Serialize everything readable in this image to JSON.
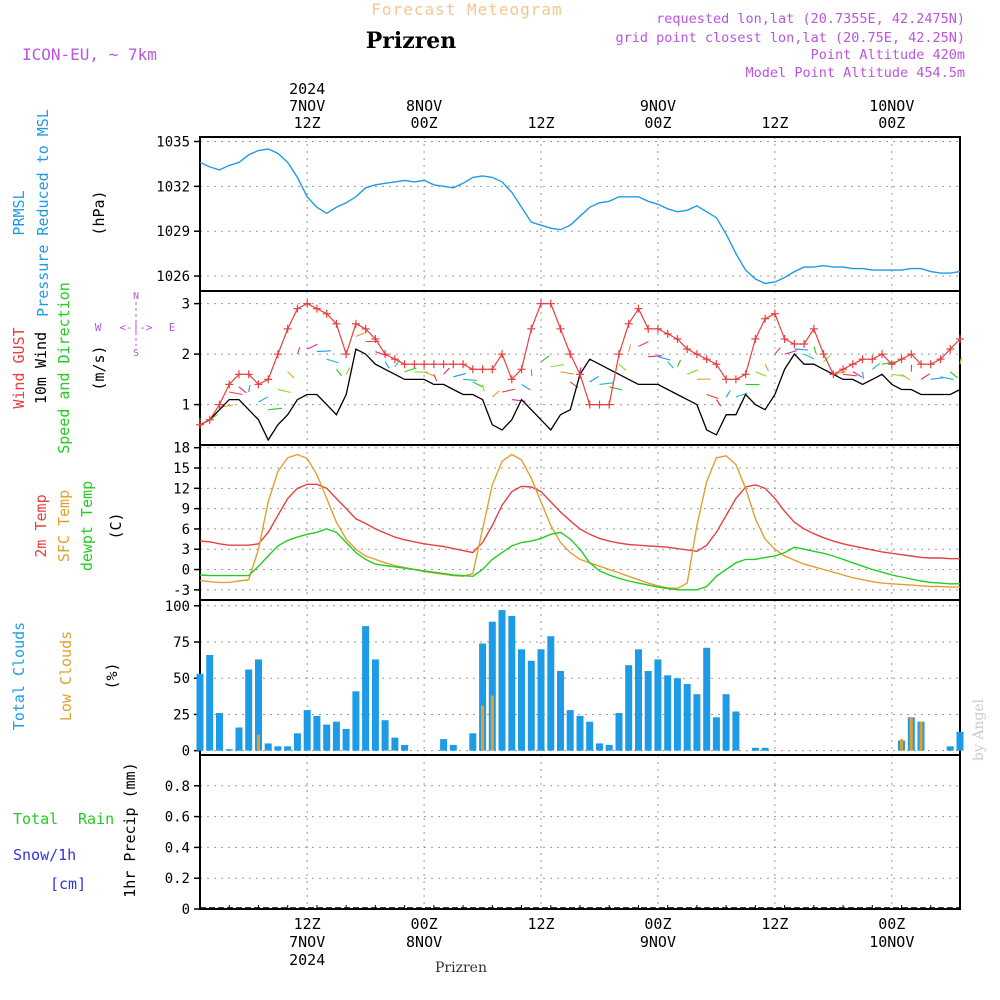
{
  "header": {
    "product": "Forecast Meteogram",
    "location": "Prizren",
    "model": "ICON-EU, ~ 7km",
    "requested": "requested lon,lat (20.7355E, 42.2475N)",
    "grid_point": "grid point closest lon,lat (20.75E, 42.25N)",
    "point_altitude": "Point Altitude 420m",
    "model_altitude": "Model Point Altitude 454.5m",
    "bottom_location": "Prizren",
    "watermark": "by Angel"
  },
  "time_axis": {
    "top_labels": [
      {
        "x": 12,
        "lines": [
          "2024",
          "7NOV",
          "12Z"
        ]
      },
      {
        "x": 24,
        "lines": [
          "8NOV",
          "00Z"
        ]
      },
      {
        "x": 36,
        "lines": [
          "12Z"
        ]
      },
      {
        "x": 48,
        "lines": [
          "9NOV",
          "00Z"
        ]
      },
      {
        "x": 60,
        "lines": [
          "12Z"
        ]
      },
      {
        "x": 72,
        "lines": [
          "10NOV",
          "00Z"
        ]
      }
    ],
    "bottom_labels": [
      {
        "x": 12,
        "lines": [
          "12Z",
          "7NOV",
          "2024"
        ]
      },
      {
        "x": 24,
        "lines": [
          "00Z",
          "8NOV"
        ]
      },
      {
        "x": 36,
        "lines": [
          "12Z"
        ]
      },
      {
        "x": 48,
        "lines": [
          "00Z",
          "9NOV"
        ]
      },
      {
        "x": 60,
        "lines": [
          "12Z"
        ]
      },
      {
        "x": 72,
        "lines": [
          "00Z",
          "10NOV"
        ]
      }
    ]
  },
  "panel_labels": {
    "pressure": [
      "PRMSL",
      "Pressure Reduced to MSL",
      "(hPa)"
    ],
    "wind": [
      "Wind GUST",
      "10m Wind",
      "Speed and Direction",
      "(m/s)"
    ],
    "compass": {
      "n": "N",
      "s": "S",
      "e": "E",
      "w": "W",
      "arrow": "<-|->"
    },
    "temp": [
      "2m Temp",
      "SFC Temp",
      "dewpt Temp",
      "(C)"
    ],
    "clouds": [
      "Total Clouds",
      "Low Clouds",
      "(%)"
    ],
    "precip": [
      "Total",
      "Rain",
      "Snow/1h",
      "[cm]",
      "1hr Precip (mm)"
    ]
  },
  "colors": {
    "pressure": "#1e9be6",
    "gust": "#e84040",
    "wind": "#000000",
    "sfc_temp": "#e0a030",
    "temp2m": "#e84040",
    "dewpt": "#22cc22",
    "total_clouds": "#1e9be6",
    "low_clouds": "#e0a030",
    "rain": "#22cc22",
    "snow": "#3333dd",
    "header": "#bb55dd",
    "product": "#f0c890"
  },
  "chart_data": [
    {
      "type": "line",
      "panel": "pressure",
      "ylabel": "(hPa)",
      "ylim": [
        1025,
        1035.3
      ],
      "yticks": [
        1026,
        1029,
        1032,
        1035
      ],
      "xlim": [
        1,
        79
      ],
      "x": [
        1,
        2,
        3,
        4,
        5,
        6,
        7,
        8,
        9,
        10,
        11,
        12,
        13,
        14,
        15,
        16,
        17,
        18,
        19,
        20,
        21,
        22,
        23,
        24,
        25,
        26,
        27,
        28,
        29,
        30,
        31,
        32,
        33,
        34,
        35,
        36,
        37,
        38,
        39,
        40,
        41,
        42,
        43,
        44,
        45,
        46,
        47,
        48,
        49,
        50,
        51,
        52,
        53,
        54,
        55,
        56,
        57,
        58,
        59,
        60,
        61,
        62,
        63,
        64,
        65,
        66,
        67,
        68,
        69,
        70,
        71,
        72,
        73,
        74,
        75,
        76,
        77,
        78,
        79
      ],
      "series": [
        {
          "name": "PRMSL",
          "values": [
            1033.6,
            1033.3,
            1033.1,
            1033.4,
            1033.6,
            1034.1,
            1034.4,
            1034.5,
            1034.2,
            1033.6,
            1032.6,
            1031.3,
            1030.6,
            1030.2,
            1030.6,
            1030.9,
            1031.3,
            1031.9,
            1032.1,
            1032.2,
            1032.3,
            1032.4,
            1032.3,
            1032.4,
            1032.1,
            1032.0,
            1031.9,
            1032.2,
            1032.6,
            1032.7,
            1032.6,
            1032.3,
            1031.6,
            1030.6,
            1029.6,
            1029.4,
            1029.2,
            1029.1,
            1029.4,
            1030.0,
            1030.6,
            1030.9,
            1031.0,
            1031.3,
            1031.3,
            1031.3,
            1031.0,
            1030.8,
            1030.5,
            1030.3,
            1030.4,
            1030.7,
            1030.3,
            1029.9,
            1028.8,
            1027.5,
            1026.4,
            1025.8,
            1025.5,
            1025.6,
            1025.9,
            1026.3,
            1026.6,
            1026.6,
            1026.7,
            1026.6,
            1026.6,
            1026.5,
            1026.5,
            1026.4,
            1026.4,
            1026.4,
            1026.4,
            1026.5,
            1026.5,
            1026.3,
            1026.2,
            1026.2,
            1026.3
          ]
        }
      ]
    },
    {
      "type": "line",
      "panel": "wind",
      "ylabel": "(m/s)",
      "ylim": [
        0.2,
        3.25
      ],
      "yticks": [
        1,
        2,
        3
      ],
      "xlim": [
        1,
        79
      ],
      "x": [
        1,
        2,
        3,
        4,
        5,
        6,
        7,
        8,
        9,
        10,
        11,
        12,
        13,
        14,
        15,
        16,
        17,
        18,
        19,
        20,
        21,
        22,
        23,
        24,
        25,
        26,
        27,
        28,
        29,
        30,
        31,
        32,
        33,
        34,
        35,
        36,
        37,
        38,
        39,
        40,
        41,
        42,
        43,
        44,
        45,
        46,
        47,
        48,
        49,
        50,
        51,
        52,
        53,
        54,
        55,
        56,
        57,
        58,
        59,
        60,
        61,
        62,
        63,
        64,
        65,
        66,
        67,
        68,
        69,
        70,
        71,
        72,
        73,
        74,
        75,
        76,
        77,
        78,
        79
      ],
      "series": [
        {
          "name": "Wind GUST",
          "values": [
            0.6,
            0.7,
            1.0,
            1.4,
            1.6,
            1.6,
            1.4,
            1.5,
            2.0,
            2.5,
            2.9,
            3.0,
            2.9,
            2.8,
            2.6,
            2.0,
            2.6,
            2.5,
            2.3,
            2.0,
            1.9,
            1.8,
            1.8,
            1.8,
            1.8,
            1.8,
            1.8,
            1.8,
            1.7,
            1.7,
            1.7,
            2.0,
            1.5,
            1.7,
            2.5,
            3.0,
            3.0,
            2.5,
            2.0,
            1.6,
            1.0,
            1.0,
            1.0,
            2.0,
            2.6,
            2.9,
            2.5,
            2.5,
            2.4,
            2.3,
            2.1,
            2.0,
            1.9,
            1.8,
            1.5,
            1.5,
            1.6,
            2.3,
            2.7,
            2.8,
            2.3,
            2.2,
            2.2,
            2.5,
            2.0,
            1.6,
            1.7,
            1.8,
            1.9,
            1.9,
            2.0,
            1.8,
            1.9,
            2.0,
            1.8,
            1.8,
            1.9,
            2.1,
            2.3
          ]
        },
        {
          "name": "10m Wind",
          "values": [
            0.6,
            0.7,
            0.9,
            1.1,
            1.1,
            0.9,
            0.7,
            0.3,
            0.6,
            0.8,
            1.1,
            1.2,
            1.2,
            1.0,
            0.8,
            1.2,
            2.1,
            2.0,
            1.8,
            1.7,
            1.6,
            1.5,
            1.5,
            1.5,
            1.4,
            1.4,
            1.3,
            1.2,
            1.2,
            1.1,
            0.6,
            0.5,
            0.7,
            1.1,
            0.9,
            0.7,
            0.5,
            0.8,
            0.9,
            1.6,
            1.9,
            1.8,
            1.7,
            1.6,
            1.5,
            1.4,
            1.4,
            1.4,
            1.3,
            1.2,
            1.1,
            1.0,
            0.5,
            0.4,
            0.8,
            0.8,
            1.2,
            1.0,
            0.9,
            1.2,
            1.7,
            2.0,
            1.8,
            1.8,
            1.7,
            1.6,
            1.5,
            1.5,
            1.4,
            1.5,
            1.6,
            1.4,
            1.3,
            1.3,
            1.2,
            1.2,
            1.2,
            1.2,
            1.3
          ]
        }
      ],
      "direction_arrows": true
    },
    {
      "type": "line",
      "panel": "temperature",
      "ylabel": "(C)",
      "ylim": [
        -4.5,
        18.4
      ],
      "yticks": [
        -3,
        0,
        3,
        6,
        9,
        12,
        15,
        18
      ],
      "xlim": [
        1,
        79
      ],
      "x": [
        1,
        2,
        3,
        4,
        5,
        6,
        7,
        8,
        9,
        10,
        11,
        12,
        13,
        14,
        15,
        16,
        17,
        18,
        19,
        20,
        21,
        22,
        23,
        24,
        25,
        26,
        27,
        28,
        29,
        30,
        31,
        32,
        33,
        34,
        35,
        36,
        37,
        38,
        39,
        40,
        41,
        42,
        43,
        44,
        45,
        46,
        47,
        48,
        49,
        50,
        51,
        52,
        53,
        54,
        55,
        56,
        57,
        58,
        59,
        60,
        61,
        62,
        63,
        64,
        65,
        66,
        67,
        68,
        69,
        70,
        71,
        72,
        73,
        74,
        75,
        76,
        77,
        78,
        79
      ],
      "series": [
        {
          "name": "2m Temp",
          "values": [
            4.2,
            4.1,
            3.8,
            3.6,
            3.6,
            3.6,
            3.8,
            5.5,
            8.0,
            10.5,
            12.0,
            12.6,
            12.6,
            12.0,
            10.5,
            9.0,
            7.5,
            6.8,
            6.0,
            5.4,
            4.8,
            4.4,
            4.1,
            3.8,
            3.6,
            3.4,
            3.1,
            2.8,
            2.5,
            4.0,
            6.5,
            9.5,
            11.5,
            12.3,
            12.2,
            11.5,
            10.0,
            8.5,
            7.2,
            6.0,
            5.2,
            4.6,
            4.2,
            3.9,
            3.7,
            3.6,
            3.5,
            3.4,
            3.3,
            3.1,
            2.9,
            2.7,
            3.6,
            5.5,
            8.0,
            10.5,
            12.2,
            12.5,
            12.0,
            10.5,
            8.6,
            7.0,
            6.0,
            5.3,
            4.7,
            4.2,
            3.8,
            3.5,
            3.2,
            2.9,
            2.6,
            2.4,
            2.2,
            2.0,
            1.8,
            1.7,
            1.7,
            1.6,
            1.6
          ]
        },
        {
          "name": "SFC Temp",
          "values": [
            -1.6,
            -1.8,
            -1.9,
            -1.9,
            -1.7,
            -1.5,
            3.0,
            10.0,
            14.5,
            16.5,
            17.0,
            16.4,
            14.0,
            10.5,
            7.0,
            4.5,
            3.0,
            2.0,
            1.5,
            1.0,
            0.6,
            0.3,
            0.0,
            -0.3,
            -0.5,
            -0.7,
            -0.9,
            -1.0,
            -0.6,
            6.0,
            12.5,
            16.0,
            17.0,
            16.2,
            13.5,
            10.0,
            6.5,
            4.0,
            2.5,
            1.5,
            1.0,
            0.5,
            0.0,
            -0.5,
            -1.0,
            -1.5,
            -2.0,
            -2.4,
            -2.7,
            -2.8,
            -2.0,
            6.5,
            13.0,
            16.5,
            16.8,
            15.5,
            12.0,
            7.5,
            4.5,
            3.0,
            2.0,
            1.4,
            0.8,
            0.4,
            0.0,
            -0.4,
            -0.8,
            -1.2,
            -1.5,
            -1.8,
            -2.0,
            -2.1,
            -2.2,
            -2.3,
            -2.4,
            -2.5,
            -2.5,
            -2.6,
            -2.6
          ]
        },
        {
          "name": "dewpt Temp",
          "values": [
            -0.8,
            -0.9,
            -0.9,
            -0.9,
            -0.9,
            -0.9,
            0.5,
            2.0,
            3.5,
            4.3,
            4.8,
            5.2,
            5.5,
            6.0,
            5.5,
            4.0,
            2.5,
            1.5,
            0.8,
            0.6,
            0.4,
            0.2,
            0.0,
            -0.2,
            -0.4,
            -0.6,
            -0.8,
            -0.9,
            -1.0,
            0.0,
            1.5,
            2.5,
            3.5,
            4.0,
            4.2,
            4.6,
            5.2,
            5.5,
            4.5,
            3.0,
            1.0,
            -0.2,
            -0.8,
            -1.3,
            -1.7,
            -2.0,
            -2.3,
            -2.6,
            -2.8,
            -3.0,
            -3.0,
            -3.0,
            -2.5,
            -1.0,
            0.0,
            1.0,
            1.5,
            1.5,
            1.8,
            2.0,
            2.5,
            3.3,
            3.0,
            2.7,
            2.4,
            2.0,
            1.5,
            1.0,
            0.5,
            0.0,
            -0.4,
            -0.8,
            -1.1,
            -1.4,
            -1.7,
            -1.9,
            -2.0,
            -2.1,
            -2.1
          ]
        }
      ]
    },
    {
      "type": "bar",
      "panel": "clouds",
      "ylabel": "(%)",
      "ylim": [
        -3,
        104
      ],
      "yticks": [
        0,
        25,
        50,
        75,
        100
      ],
      "xlim": [
        1,
        79
      ],
      "x": [
        1,
        2,
        3,
        4,
        5,
        6,
        7,
        8,
        9,
        10,
        11,
        12,
        13,
        14,
        15,
        16,
        17,
        18,
        19,
        20,
        21,
        22,
        23,
        24,
        25,
        26,
        27,
        28,
        29,
        30,
        31,
        32,
        33,
        34,
        35,
        36,
        37,
        38,
        39,
        40,
        41,
        42,
        43,
        44,
        45,
        46,
        47,
        48,
        49,
        50,
        51,
        52,
        53,
        54,
        55,
        56,
        57,
        58,
        59,
        60,
        61,
        62,
        63,
        64,
        65,
        66,
        67,
        68,
        69,
        70,
        71,
        72,
        73,
        74,
        75,
        76,
        77,
        78,
        79
      ],
      "series": [
        {
          "name": "Total Clouds",
          "values": [
            53,
            66,
            26,
            1,
            16,
            56,
            63,
            5,
            3,
            3,
            12,
            28,
            24,
            18,
            20,
            15,
            41,
            86,
            63,
            21,
            9,
            4,
            0,
            0,
            0,
            8,
            4,
            0,
            12,
            74,
            89,
            97,
            93,
            70,
            62,
            70,
            79,
            55,
            28,
            24,
            20,
            5,
            4,
            26,
            59,
            70,
            55,
            63,
            52,
            50,
            46,
            39,
            71,
            23,
            39,
            27,
            0,
            2,
            2,
            0,
            0,
            0,
            0,
            0,
            0,
            0,
            0,
            0,
            0,
            0,
            0,
            0,
            7,
            23,
            20,
            0,
            0,
            3,
            13
          ]
        },
        {
          "name": "Low Clouds",
          "values": [
            0,
            0,
            0,
            0,
            0,
            0,
            11,
            0,
            0,
            0,
            0,
            0,
            0,
            0,
            0,
            0,
            0,
            0,
            0,
            0,
            0,
            0,
            0,
            0,
            0,
            0,
            0,
            0,
            0,
            31,
            38,
            0,
            0,
            0,
            0,
            0,
            0,
            0,
            0,
            0,
            0,
            0,
            0,
            0,
            0,
            0,
            0,
            0,
            0,
            0,
            0,
            0,
            0,
            0,
            0,
            0,
            0,
            0,
            0,
            0,
            0,
            0,
            0,
            0,
            0,
            0,
            0,
            0,
            0,
            0,
            0,
            0,
            8,
            23,
            20,
            0,
            0,
            0,
            0
          ]
        }
      ]
    },
    {
      "type": "bar",
      "panel": "precip",
      "ylabel": "1hr Precip (mm)",
      "ylim": [
        0,
        1.0
      ],
      "yticks": [
        0,
        0.2,
        0.4,
        0.6,
        0.8
      ],
      "xlim": [
        1,
        79
      ],
      "series": []
    }
  ]
}
